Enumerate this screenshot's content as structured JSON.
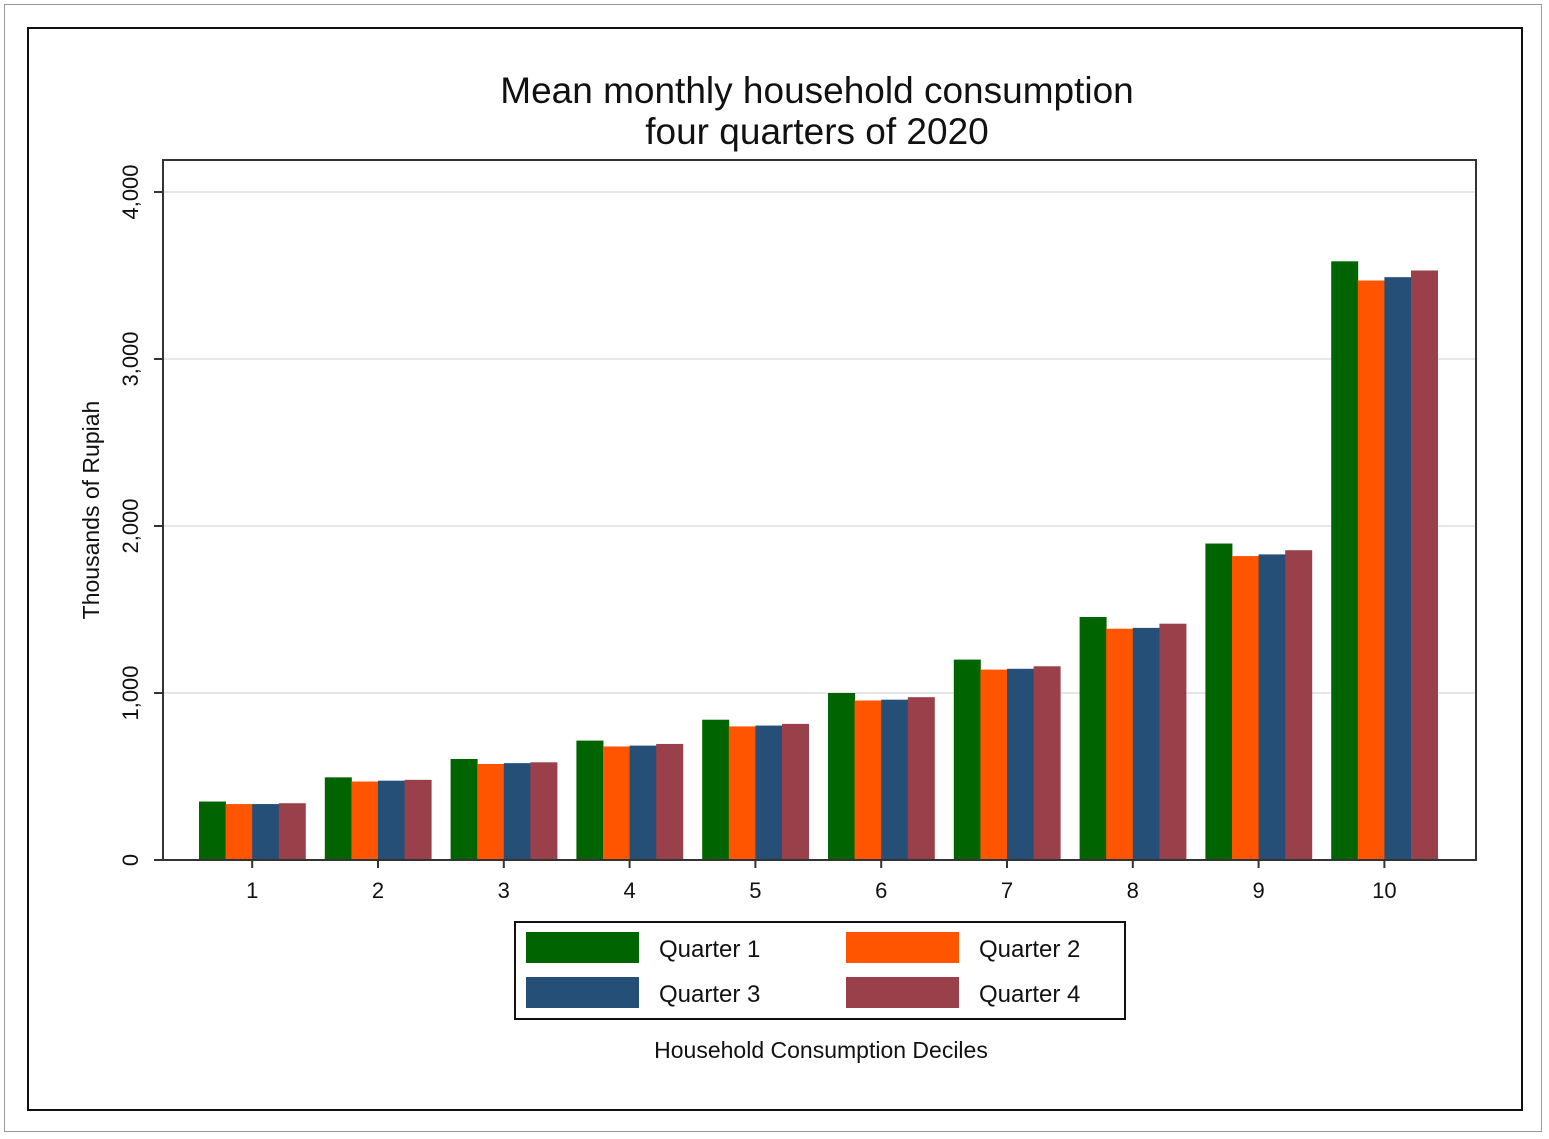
{
  "chart_data": {
    "type": "bar",
    "title": "Mean monthly household consumption",
    "subtitle": "four quarters of 2020",
    "xlabel": "Household Consumption Deciles",
    "ylabel": "Thousands of Rupiah",
    "ylim": [
      0,
      4000
    ],
    "yticks": [
      0,
      1000,
      2000,
      3000,
      4000
    ],
    "ytick_labels": [
      "0",
      "1,000",
      "2,000",
      "3,000",
      "4,000"
    ],
    "grid": true,
    "legend_position": "bottom",
    "categories": [
      "1",
      "2",
      "3",
      "4",
      "5",
      "6",
      "7",
      "8",
      "9",
      "10"
    ],
    "series": [
      {
        "name": "Quarter 1",
        "color": "#006400",
        "values": [
          350,
          495,
          605,
          715,
          840,
          1000,
          1200,
          1455,
          1895,
          3585
        ]
      },
      {
        "name": "Quarter 2",
        "color": "#ff5500",
        "values": [
          335,
          470,
          575,
          680,
          800,
          955,
          1140,
          1385,
          1820,
          3470
        ]
      },
      {
        "name": "Quarter 3",
        "color": "#264f78",
        "values": [
          335,
          475,
          580,
          685,
          805,
          960,
          1145,
          1390,
          1830,
          3490
        ]
      },
      {
        "name": "Quarter 4",
        "color": "#99404a",
        "values": [
          340,
          480,
          585,
          695,
          815,
          975,
          1160,
          1415,
          1855,
          3530
        ]
      }
    ]
  }
}
